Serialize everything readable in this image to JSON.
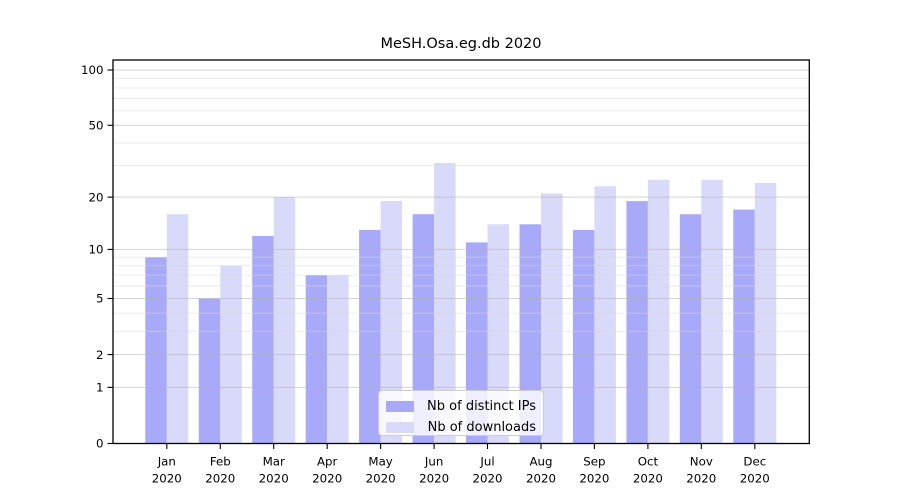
{
  "title": "MeSH.Osa.eg.db 2020",
  "chart_data": {
    "type": "bar",
    "title": "MeSH.Osa.eg.db 2020",
    "categories": [
      "Jan\n2020",
      "Feb\n2020",
      "Mar\n2020",
      "Apr\n2020",
      "May\n2020",
      "Jun\n2020",
      "Jul\n2020",
      "Aug\n2020",
      "Sep\n2020",
      "Oct\n2020",
      "Nov\n2020",
      "Dec\n2020"
    ],
    "series": [
      {
        "name": "Nb of distinct IPs",
        "color": "#a9a9f9",
        "values": [
          9,
          5,
          12,
          7,
          13,
          16,
          11,
          14,
          13,
          19,
          16,
          17
        ]
      },
      {
        "name": "Nb of downloads",
        "color": "#d9d9f9",
        "values": [
          16,
          8,
          20,
          7,
          19,
          31,
          14,
          21,
          23,
          25,
          25,
          24
        ]
      }
    ],
    "xlabel": "",
    "ylabel": "",
    "yscale": "log1p",
    "y_ticks": [
      0,
      1,
      2,
      5,
      10,
      20,
      50,
      100
    ],
    "y_minor_gridlines": [
      3,
      4,
      6,
      7,
      8,
      9,
      30,
      40,
      60,
      70,
      80,
      90
    ],
    "ylim": [
      0,
      113
    ],
    "grid": true,
    "legend_position": "lower center"
  },
  "colors": {
    "bar_dark": "#a9a9f9",
    "bar_light": "#d9d9f9",
    "major_grid": "#b0b0b0",
    "minor_grid": "#d8d8d8",
    "axis": "#000000",
    "background": "#ffffff"
  }
}
